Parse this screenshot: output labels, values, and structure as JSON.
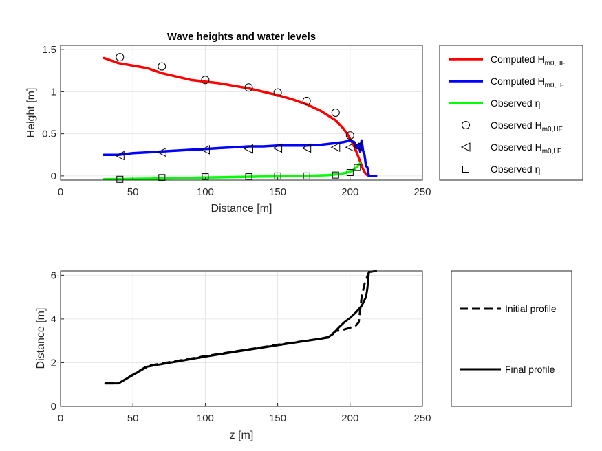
{
  "chart_data": [
    {
      "type": "line",
      "title": "Wave heights and water levels",
      "xlabel": "Distance [m]",
      "ylabel": "Height [m]",
      "xlim": [
        0,
        250
      ],
      "ylim": [
        -0.05,
        1.55
      ],
      "xticks": [
        "0",
        "50",
        "100",
        "150",
        "200",
        "250"
      ],
      "yticks": [
        "0",
        "0.5",
        "1",
        "1.5"
      ],
      "grid": true,
      "legend_placement": "outside-right",
      "series": [
        {
          "name": "Computed H",
          "sub": "m0,HF",
          "color": "#ff0000",
          "style": "line",
          "x": [
            30,
            35,
            40,
            50,
            60,
            70,
            80,
            90,
            100,
            110,
            120,
            130,
            140,
            150,
            160,
            170,
            180,
            190,
            195,
            198,
            200,
            203,
            205,
            207,
            209,
            211,
            213
          ],
          "y": [
            1.4,
            1.37,
            1.34,
            1.31,
            1.28,
            1.22,
            1.18,
            1.14,
            1.12,
            1.1,
            1.07,
            1.04,
            1.0,
            0.96,
            0.91,
            0.85,
            0.77,
            0.66,
            0.57,
            0.5,
            0.44,
            0.35,
            0.26,
            0.17,
            0.08,
            0.02,
            0.0
          ]
        },
        {
          "name": "Computed H",
          "sub": "m0,LF",
          "color": "#0000ff",
          "style": "line",
          "x": [
            30,
            40,
            50,
            60,
            70,
            80,
            90,
            100,
            110,
            120,
            130,
            140,
            150,
            160,
            170,
            180,
            190,
            195,
            200,
            203,
            205,
            206,
            207,
            208,
            209,
            210,
            211,
            212,
            213,
            215,
            218
          ],
          "y": [
            0.25,
            0.25,
            0.27,
            0.28,
            0.29,
            0.3,
            0.31,
            0.32,
            0.33,
            0.34,
            0.35,
            0.35,
            0.36,
            0.36,
            0.36,
            0.37,
            0.39,
            0.4,
            0.42,
            0.4,
            0.33,
            0.38,
            0.29,
            0.42,
            0.3,
            0.25,
            0.12,
            0.1,
            0.0,
            0.0,
            0.0
          ]
        },
        {
          "name": "Observed η",
          "color": "#00ff00",
          "style": "line",
          "x": [
            30,
            50,
            70,
            100,
            130,
            150,
            170,
            185,
            195,
            200,
            203,
            205,
            207
          ],
          "y": [
            -0.04,
            -0.035,
            -0.03,
            -0.02,
            -0.01,
            -0.005,
            0.0,
            0.01,
            0.03,
            0.05,
            0.08,
            0.11,
            0.15
          ]
        },
        {
          "name": "Observed H",
          "sub": "m0,HF",
          "color": "#000000",
          "style": "circle",
          "x": [
            41,
            70,
            100,
            130,
            150,
            170,
            190,
            200
          ],
          "y": [
            1.41,
            1.3,
            1.14,
            1.05,
            0.99,
            0.89,
            0.75,
            0.48
          ]
        },
        {
          "name": "Observed H",
          "sub": "m0,LF",
          "color": "#000000",
          "style": "triangle-left",
          "x": [
            41,
            70,
            100,
            130,
            150,
            170,
            190,
            200,
            205
          ],
          "y": [
            0.24,
            0.28,
            0.31,
            0.32,
            0.33,
            0.33,
            0.34,
            0.34,
            0.35
          ]
        },
        {
          "name": "Observed η",
          "color": "#000000",
          "style": "square",
          "x": [
            41,
            70,
            100,
            130,
            150,
            170,
            190,
            200,
            205
          ],
          "y": [
            -0.04,
            -0.02,
            -0.01,
            -0.01,
            0.0,
            0.0,
            0.01,
            0.04,
            0.1
          ]
        }
      ]
    },
    {
      "type": "line",
      "title": "",
      "xlabel": "z [m]",
      "ylabel": "Distance [m]",
      "xlim": [
        0,
        250
      ],
      "ylim": [
        0,
        6.2
      ],
      "xticks": [
        "0",
        "50",
        "100",
        "150",
        "200",
        "250"
      ],
      "yticks": [
        "0",
        "2",
        "4",
        "6"
      ],
      "grid": true,
      "legend_placement": "outside-right",
      "series": [
        {
          "name": "Initial profile",
          "color": "#000000",
          "style": "dashed",
          "x": [
            31,
            40,
            60,
            100,
            150,
            185,
            190,
            195,
            200,
            204,
            206,
            207,
            208,
            210,
            213
          ],
          "y": [
            1.05,
            1.05,
            1.85,
            2.3,
            2.82,
            3.15,
            3.45,
            3.5,
            3.6,
            3.7,
            3.85,
            4.4,
            5.0,
            5.6,
            6.15
          ]
        },
        {
          "name": "Final profile",
          "color": "#000000",
          "style": "solid",
          "x": [
            31,
            40,
            60,
            100,
            150,
            180,
            185,
            188,
            192,
            196,
            200,
            204,
            208,
            211,
            212,
            212.5,
            213,
            218
          ],
          "y": [
            1.05,
            1.05,
            1.82,
            2.28,
            2.8,
            3.1,
            3.18,
            3.3,
            3.6,
            3.85,
            4.05,
            4.3,
            4.6,
            5.0,
            5.4,
            5.8,
            6.15,
            6.2
          ]
        }
      ]
    }
  ]
}
